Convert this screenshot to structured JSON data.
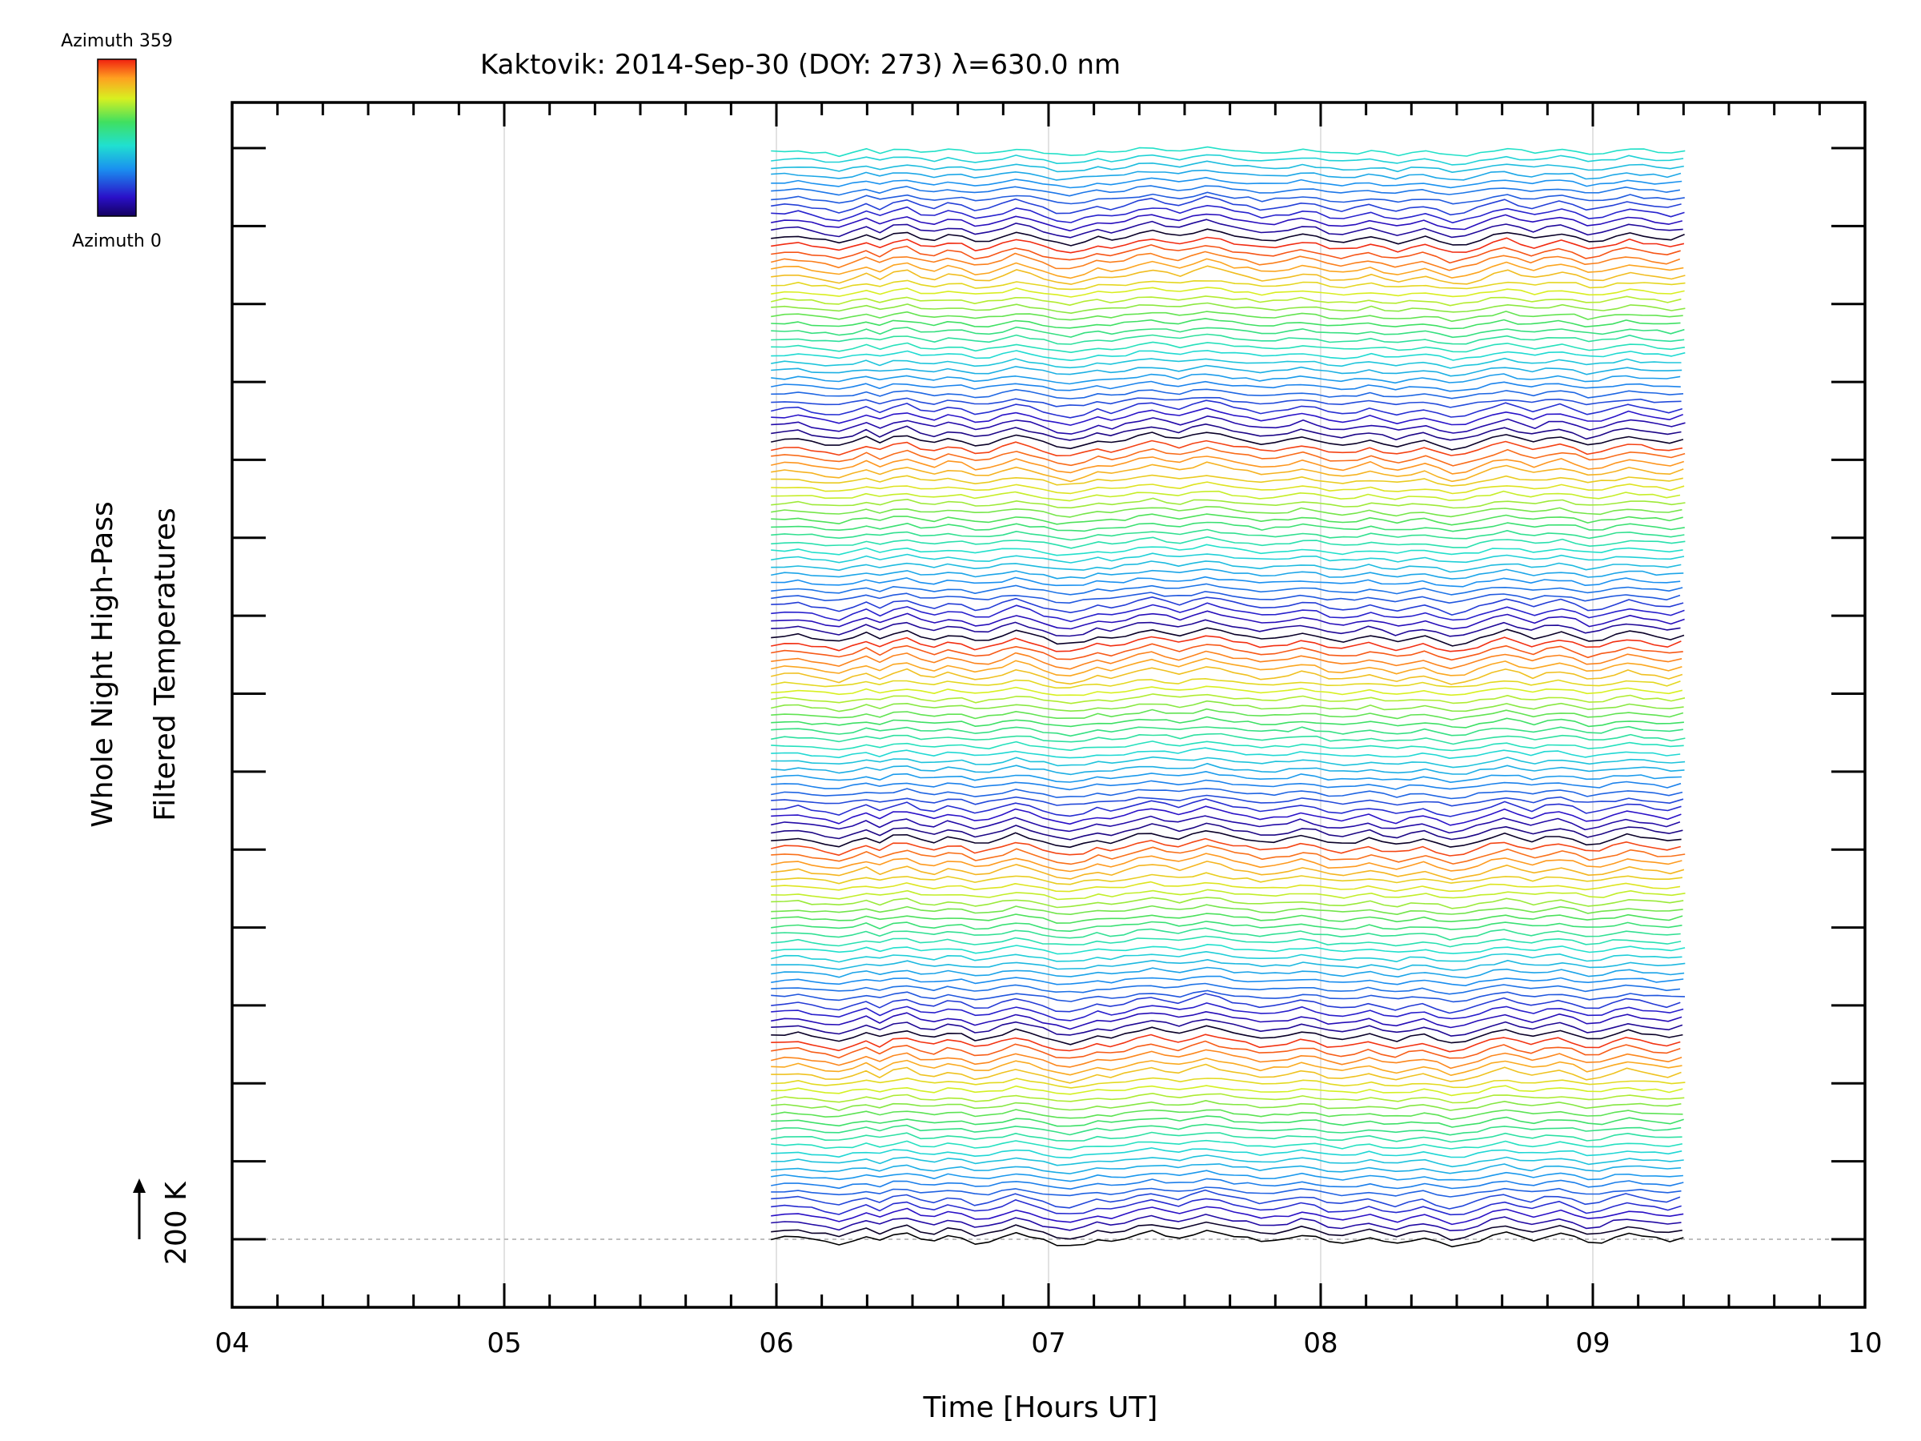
{
  "chart_data": {
    "type": "line",
    "title": "Kaktovik: 2014-Sep-30 (DOY: 273) λ=630.0 nm",
    "xlabel": "Time [Hours UT]",
    "ylabel_line1": "Whole Night High-Pass",
    "ylabel_line2": "Filtered Temperatures",
    "scale_label": "200 K",
    "xlim": [
      4,
      10
    ],
    "x_ticks": [
      "04",
      "05",
      "06",
      "07",
      "08",
      "09",
      "10"
    ],
    "x_gridlines": [
      5,
      6,
      7,
      8,
      9
    ],
    "colorbar": {
      "top_label": "Azimuth 359",
      "bottom_label": "Azimuth 0",
      "range": [
        0,
        359
      ]
    },
    "baseline": 0,
    "data_start_hour": 5.98,
    "data_end_hour": 9.33,
    "sample_count": 68,
    "series_count": 140,
    "series_offset_K": 40,
    "azimuth_cycles": 5.5,
    "y_offset_range_K": [
      -60,
      5700
    ],
    "common_wave": [
      0,
      8,
      12,
      -4,
      -16,
      -28,
      -6,
      18,
      -10,
      20,
      32,
      4,
      -8,
      14,
      6,
      -20,
      -12,
      10,
      34,
      16,
      -6,
      -30,
      -38,
      -22,
      2,
      -10,
      6,
      28,
      40,
      24,
      10,
      30,
      50,
      34,
      14,
      6,
      -12,
      -6,
      4,
      22,
      10,
      -14,
      -20,
      -10,
      8,
      -12,
      -26,
      -8,
      4,
      -18,
      -40,
      -30,
      -8,
      18,
      34,
      12,
      -6,
      14,
      26,
      8,
      -20,
      -12,
      10,
      28,
      16,
      4,
      -8,
      12
    ]
  }
}
